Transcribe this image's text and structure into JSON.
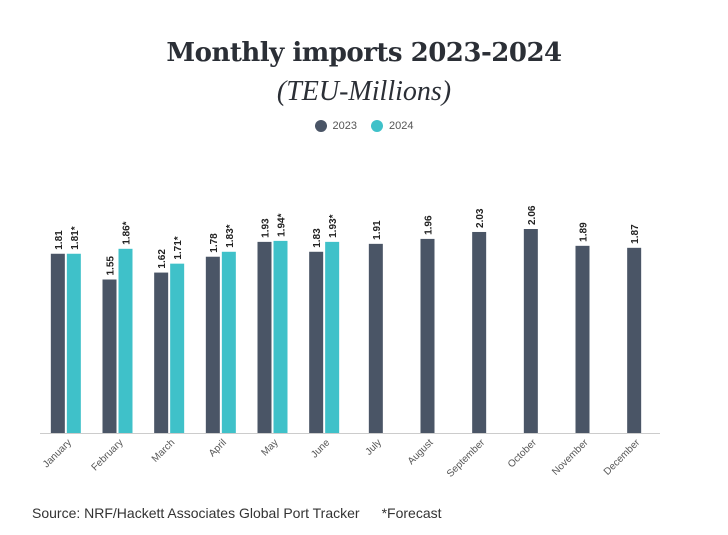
{
  "title": "Monthly imports 2023-2024",
  "subtitle": "(TEU-Millions)",
  "legend": {
    "series_2023": "2023",
    "series_2024": "2024"
  },
  "source": "Source: NRF/Hackett Associates Global Port Tracker",
  "footnote": "*Forecast",
  "colors": {
    "series_2023": "#4a5566",
    "series_2024": "#3fc1c9",
    "axis": "#cccccc",
    "label": "#222222"
  },
  "chart_data": {
    "type": "bar",
    "categories": [
      "January",
      "February",
      "March",
      "April",
      "May",
      "June",
      "July",
      "August",
      "September",
      "October",
      "November",
      "December"
    ],
    "series": [
      {
        "name": "2023",
        "values": [
          1.81,
          1.55,
          1.62,
          1.78,
          1.93,
          1.83,
          1.91,
          1.96,
          2.03,
          2.06,
          1.89,
          1.87
        ],
        "labels": [
          "1.81",
          "1.55",
          "1.62",
          "1.78",
          "1.93",
          "1.83",
          "1.91",
          "1.96",
          "2.03",
          "2.06",
          "1.89",
          "1.87"
        ]
      },
      {
        "name": "2024",
        "values": [
          1.81,
          1.86,
          1.71,
          1.83,
          1.94,
          1.93,
          null,
          null,
          null,
          null,
          null,
          null
        ],
        "labels": [
          "1.81*",
          "1.86*",
          "1.71*",
          "1.83*",
          "1.94*",
          "1.93*",
          null,
          null,
          null,
          null,
          null,
          null
        ]
      }
    ],
    "ylim": [
      0,
      2.06
    ],
    "grid": false
  }
}
